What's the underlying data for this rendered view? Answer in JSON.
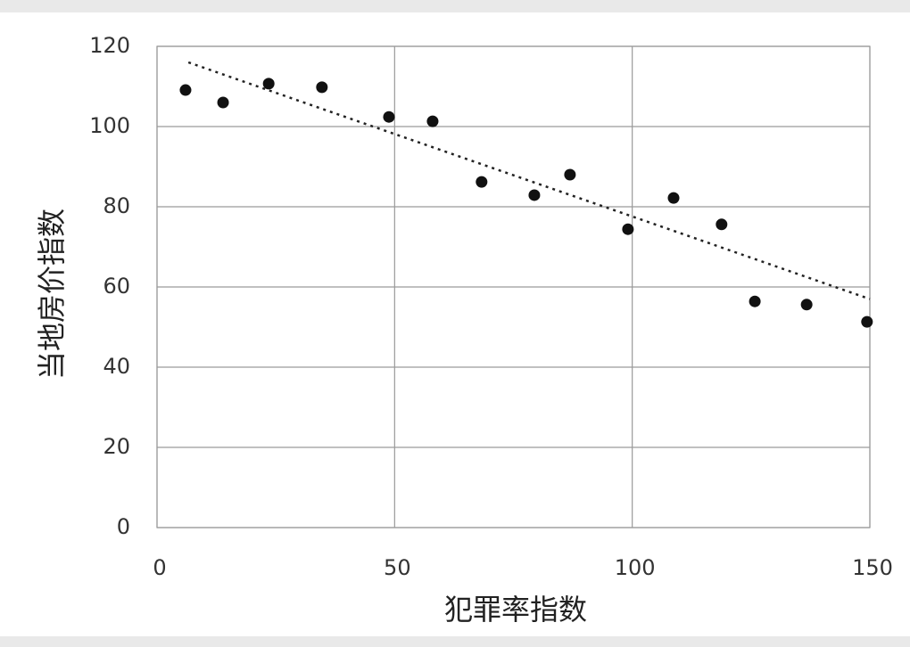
{
  "chart_data": {
    "type": "scatter",
    "x": [
      6.0,
      13.9,
      23.5,
      34.7,
      48.8,
      58.0,
      68.3,
      79.4,
      86.9,
      99.1,
      108.7,
      118.8,
      125.8,
      136.7,
      149.4
    ],
    "values": [
      109.1,
      106.0,
      110.7,
      109.8,
      102.4,
      101.3,
      86.2,
      82.9,
      88.0,
      74.4,
      82.2,
      75.6,
      56.4,
      55.6,
      51.3
    ],
    "color": "#111111",
    "trendline": {
      "x": [
        6.6,
        150
      ],
      "values": [
        116,
        57
      ],
      "color": "#222222"
    },
    "xlabel": "犯罪率指数",
    "ylabel": "当地房价指数",
    "xlim": [
      0,
      150
    ],
    "ylim": [
      0,
      120
    ],
    "xticks": [
      0,
      50,
      100,
      150
    ],
    "yticks": [
      0,
      20,
      40,
      60,
      80,
      100,
      120
    ],
    "grid": true
  }
}
